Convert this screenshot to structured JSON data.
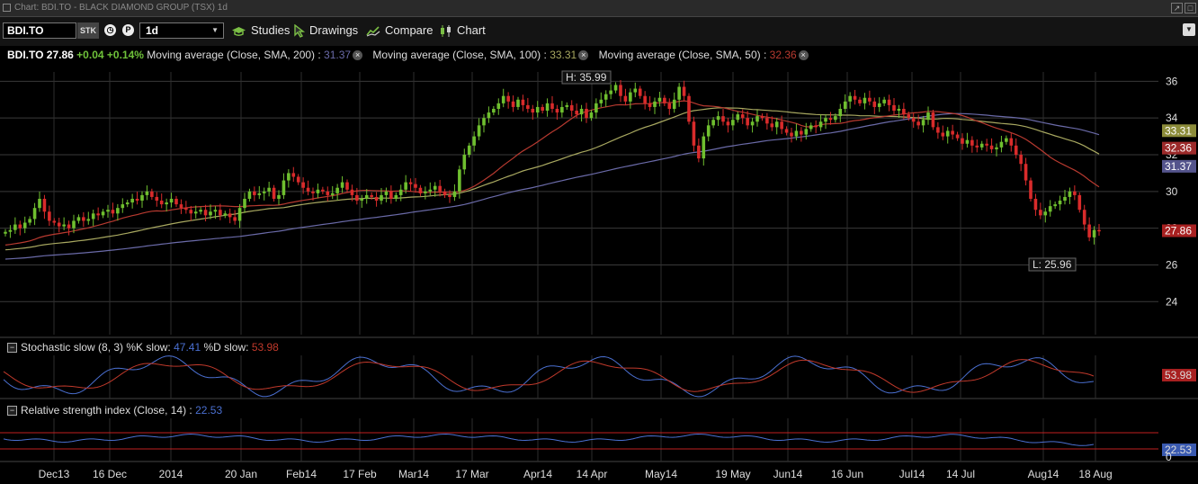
{
  "window": {
    "title": "Chart: BDI.TO - BLACK DIAMOND GROUP (TSX) 1d"
  },
  "toolbar": {
    "symbol": "BDI.TO",
    "type": "STK",
    "interval": "1d",
    "studies_label": "Studies",
    "drawings_label": "Drawings",
    "compare_label": "Compare",
    "chart_label": "Chart"
  },
  "legend": {
    "symbol": "BDI.TO",
    "last": "27.86",
    "change": "+0.04",
    "change_pct": "+0.14%",
    "ma200_label": "Moving average (Close, SMA, 200)",
    "ma200_value": "31.37",
    "ma100_label": "Moving average (Close, SMA, 100)",
    "ma100_value": "33.31",
    "ma50_label": "Moving average (Close, SMA, 50)",
    "ma50_value": "32.36"
  },
  "stoch": {
    "label": "Stochastic slow (8, 3)",
    "k_label": "%K slow:",
    "k_value": "47.41",
    "d_label": "%D slow:",
    "d_value": "53.98",
    "tag": "53.98"
  },
  "rsi": {
    "label": "Relative strength index (Close, 14)",
    "value": "22.53",
    "tag": "22.53",
    "axis_zero": "0"
  },
  "colors": {
    "up": "#6fbf2f",
    "down": "#d92b2b",
    "ma200": "#6a6aa8",
    "ma100": "#a8a860",
    "ma50": "#b83a30",
    "k_line": "#4a6fd0",
    "d_line": "#c0392b"
  },
  "chart_data": {
    "type": "candlestick",
    "y_ticks": [
      "36",
      "34",
      "32",
      "30",
      "28",
      "26",
      "24"
    ],
    "ylim": [
      22.2,
      36.9
    ],
    "x_labels": [
      "Dec13",
      "16 Dec",
      "2014",
      "20 Jan",
      "Feb14",
      "17 Feb",
      "Mar14",
      "17 Mar",
      "Apr14",
      "14 Apr",
      "May14",
      "19 May",
      "Jun14",
      "16 Jun",
      "Jul14",
      "14 Jul",
      "Aug14",
      "18 Aug"
    ],
    "high_label": "H: 35.99",
    "low_label": "L: 25.96",
    "price_tags": [
      {
        "value": "33.31",
        "series": "ma100"
      },
      {
        "value": "32.36",
        "series": "ma50"
      },
      {
        "value": "31.37",
        "series": "ma200"
      },
      {
        "value": "27.86",
        "series": "last"
      }
    ],
    "close": [
      27.8,
      27.9,
      28.2,
      28.0,
      28.3,
      28.5,
      29.1,
      29.6,
      28.9,
      28.4,
      28.3,
      28.1,
      28.2,
      28.0,
      28.4,
      28.6,
      28.4,
      28.5,
      28.8,
      28.7,
      28.9,
      29.0,
      28.8,
      29.1,
      29.3,
      29.4,
      29.6,
      29.5,
      29.8,
      30.0,
      29.7,
      29.5,
      29.3,
      29.4,
      29.6,
      29.3,
      29.1,
      29.0,
      28.8,
      28.9,
      29.0,
      28.7,
      28.9,
      29.0,
      28.7,
      28.8,
      28.6,
      28.4,
      29.1,
      29.6,
      30.0,
      29.8,
      29.9,
      30.0,
      30.2,
      29.6,
      29.8,
      30.6,
      31.0,
      30.8,
      30.5,
      30.2,
      30.0,
      29.9,
      30.1,
      30.0,
      29.8,
      29.9,
      30.2,
      30.5,
      30.1,
      29.8,
      29.5,
      29.6,
      29.8,
      29.7,
      29.5,
      29.8,
      30.0,
      29.6,
      29.8,
      30.1,
      30.5,
      30.4,
      30.2,
      29.9,
      30.0,
      30.1,
      30.3,
      30.0,
      29.8,
      29.7,
      30.0,
      31.2,
      32.0,
      32.5,
      33.0,
      33.6,
      34.0,
      34.3,
      34.5,
      34.8,
      35.2,
      34.9,
      34.6,
      35.0,
      34.7,
      34.5,
      34.3,
      34.6,
      34.4,
      34.8,
      34.5,
      34.3,
      34.6,
      34.7,
      34.4,
      34.2,
      34.5,
      34.0,
      34.3,
      34.8,
      35.0,
      35.3,
      35.5,
      35.8,
      35.2,
      34.9,
      35.4,
      35.6,
      35.2,
      34.8,
      34.6,
      34.9,
      35.1,
      34.8,
      34.5,
      35.0,
      35.7,
      35.2,
      33.8,
      32.5,
      31.8,
      33.0,
      33.6,
      33.9,
      34.1,
      33.8,
      33.6,
      33.9,
      34.2,
      34.0,
      33.6,
      33.8,
      34.1,
      34.0,
      33.7,
      33.5,
      33.8,
      33.4,
      33.2,
      33.0,
      33.3,
      33.1,
      33.4,
      33.6,
      33.5,
      33.8,
      34.0,
      33.9,
      34.1,
      34.5,
      34.9,
      35.2,
      35.0,
      34.8,
      35.1,
      34.9,
      34.6,
      34.8,
      35.0,
      34.7,
      34.4,
      34.5,
      34.2,
      34.0,
      33.8,
      33.6,
      33.9,
      34.3,
      33.5,
      33.2,
      33.0,
      33.3,
      33.1,
      32.9,
      32.6,
      32.8,
      32.5,
      32.4,
      32.6,
      32.5,
      32.3,
      32.4,
      32.7,
      32.9,
      32.5,
      32.0,
      31.5,
      30.6,
      29.6,
      29.0,
      28.7,
      28.9,
      29.2,
      29.3,
      29.5,
      29.7,
      30.0,
      29.8,
      29.0,
      28.2,
      27.5,
      27.9,
      27.86
    ]
  }
}
